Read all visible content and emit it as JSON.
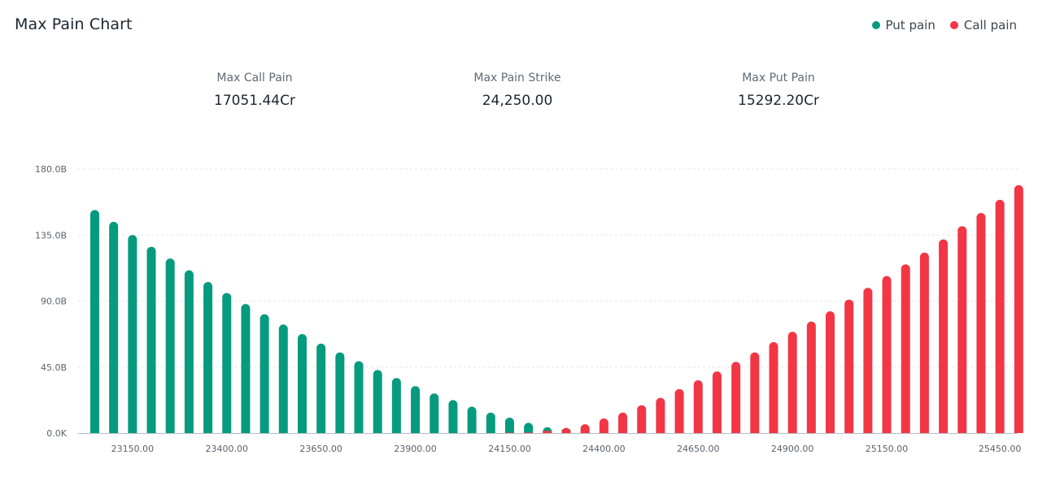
{
  "header": {
    "title": "Max Pain Chart"
  },
  "legend": {
    "items": [
      {
        "label": "Put pain",
        "color": "#069b7e"
      },
      {
        "label": "Call pain",
        "color": "#f23645"
      }
    ]
  },
  "stats": [
    {
      "label": "Max Call Pain",
      "value": "17051.44Cr"
    },
    {
      "label": "Max Pain Strike",
      "value": "24,250.00"
    },
    {
      "label": "Max Put Pain",
      "value": "15292.20Cr"
    }
  ],
  "chart_data": {
    "type": "bar",
    "x_tick_labels": [
      "23150.00",
      "23400.00",
      "23650.00",
      "23900.00",
      "24150.00",
      "24400.00",
      "24650.00",
      "24900.00",
      "25150.00",
      "25450.00"
    ],
    "y_tick_labels": [
      "0.0K",
      "45.0B",
      "90.0B",
      "135.0B",
      "180.0B"
    ],
    "ylim": [
      0,
      180
    ],
    "y_unit": "B",
    "grid": true,
    "legend_position": "top-right",
    "categories": [
      23050,
      23100,
      23150,
      23200,
      23250,
      23300,
      23350,
      23400,
      23450,
      23500,
      23550,
      23600,
      23650,
      23700,
      23750,
      23800,
      23850,
      23900,
      23950,
      24000,
      24050,
      24100,
      24150,
      24200,
      24250,
      24300,
      24350,
      24400,
      24450,
      24500,
      24550,
      24600,
      24650,
      24700,
      24750,
      24800,
      24850,
      24900,
      24950,
      25000,
      25050,
      25100,
      25150,
      25200,
      25250,
      25300,
      25350,
      25400,
      25450,
      25500
    ],
    "series": [
      {
        "name": "Put pain",
        "color": "#069b7e",
        "values": [
          152,
          144,
          135,
          127,
          119,
          111,
          103,
          95.5,
          88,
          81,
          74,
          67.5,
          61,
          55,
          49,
          43,
          37.5,
          32,
          27,
          22.5,
          18,
          14,
          10.5,
          7,
          4,
          2.3,
          1.5,
          1.0,
          0.7,
          0.5,
          0.4,
          0.3,
          0.2,
          0.2,
          0.1,
          0.1,
          0.1,
          0.1,
          0,
          0,
          0,
          0,
          0,
          0,
          0,
          0,
          0,
          0,
          0,
          0
        ]
      },
      {
        "name": "Call pain",
        "color": "#f23645",
        "values": [
          0,
          0,
          0,
          0,
          0,
          0,
          0,
          0,
          0,
          0,
          0,
          0,
          0,
          0,
          0,
          0,
          0,
          0,
          0,
          0,
          0,
          0,
          0.2,
          0.4,
          1.5,
          3.5,
          6,
          10,
          14,
          19,
          24,
          30,
          36,
          42,
          48.5,
          55,
          62,
          69,
          76,
          83,
          91,
          99,
          107,
          115,
          123,
          132,
          141,
          150,
          159,
          169
        ]
      }
    ]
  }
}
